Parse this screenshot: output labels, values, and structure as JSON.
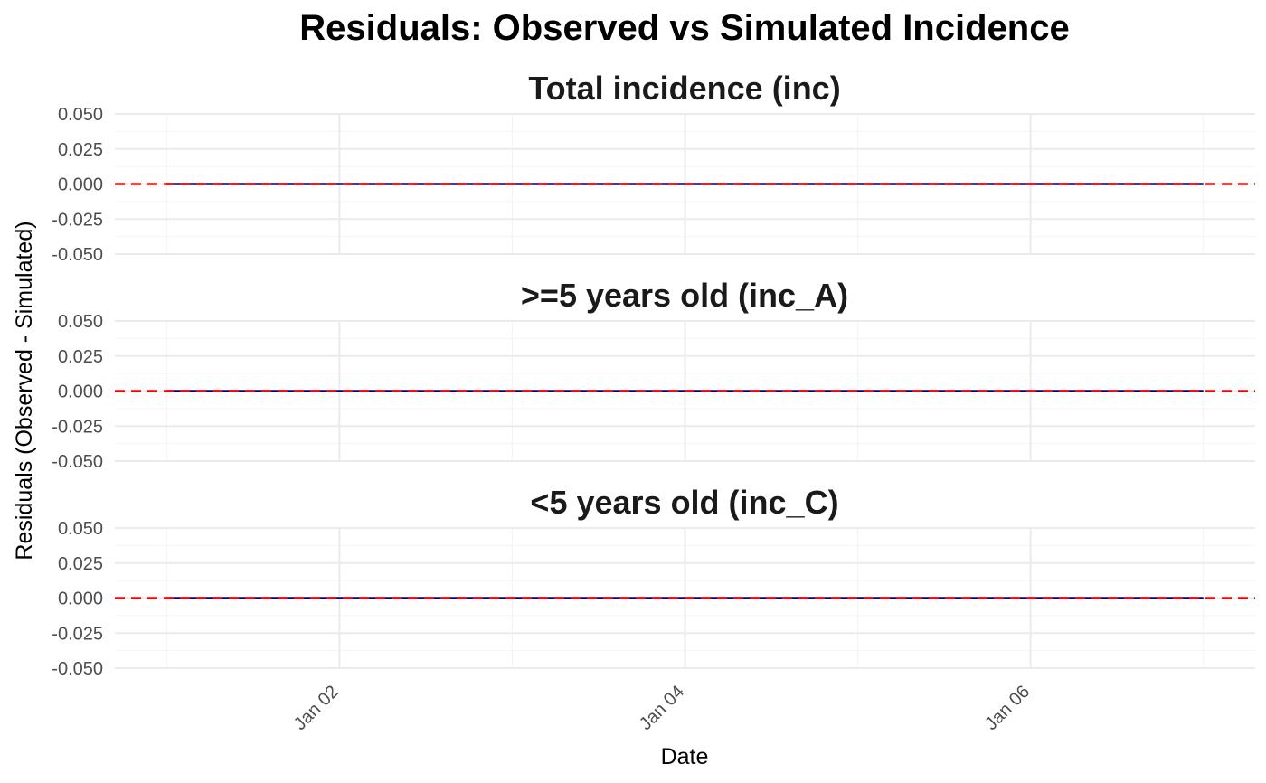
{
  "colors": {
    "residual_line": "#000080",
    "zero_reference_line": "#ff0000",
    "grid_major": "#ebebeb",
    "grid_minor": "#f4f4f4"
  },
  "chart_data": {
    "type": "line",
    "title": "Residuals: Observed vs Simulated Incidence",
    "xlabel": "Date",
    "ylabel": "Residuals (Observed - Simulated)",
    "x_axis": {
      "type": "date",
      "range": [
        "2020-01-01",
        "2020-01-07"
      ],
      "ticks": [
        "Jan 02",
        "Jan 04",
        "Jan 06"
      ]
    },
    "y_axis": {
      "range": [
        -0.05,
        0.05
      ],
      "ticks": [
        "0.050",
        "0.025",
        "0.000",
        "-0.025",
        "-0.050"
      ]
    },
    "grid": true,
    "legend": "none",
    "reference_line": {
      "y": 0,
      "style": "dashed",
      "color": "#ff0000"
    },
    "panels": [
      {
        "title": "Total incidence (inc)",
        "series": [
          {
            "x": [
              "2020-01-01",
              "2020-01-02",
              "2020-01-03",
              "2020-01-04",
              "2020-01-05",
              "2020-01-06",
              "2020-01-07"
            ],
            "y": [
              0,
              0,
              0,
              0,
              0,
              0,
              0
            ]
          }
        ]
      },
      {
        "title": ">=5 years old (inc_A)",
        "series": [
          {
            "x": [
              "2020-01-01",
              "2020-01-02",
              "2020-01-03",
              "2020-01-04",
              "2020-01-05",
              "2020-01-06",
              "2020-01-07"
            ],
            "y": [
              0,
              0,
              0,
              0,
              0,
              0,
              0
            ]
          }
        ]
      },
      {
        "title": "<5 years old (inc_C)",
        "series": [
          {
            "x": [
              "2020-01-01",
              "2020-01-02",
              "2020-01-03",
              "2020-01-04",
              "2020-01-05",
              "2020-01-06",
              "2020-01-07"
            ],
            "y": [
              0,
              0,
              0,
              0,
              0,
              0,
              0
            ]
          }
        ]
      }
    ]
  }
}
